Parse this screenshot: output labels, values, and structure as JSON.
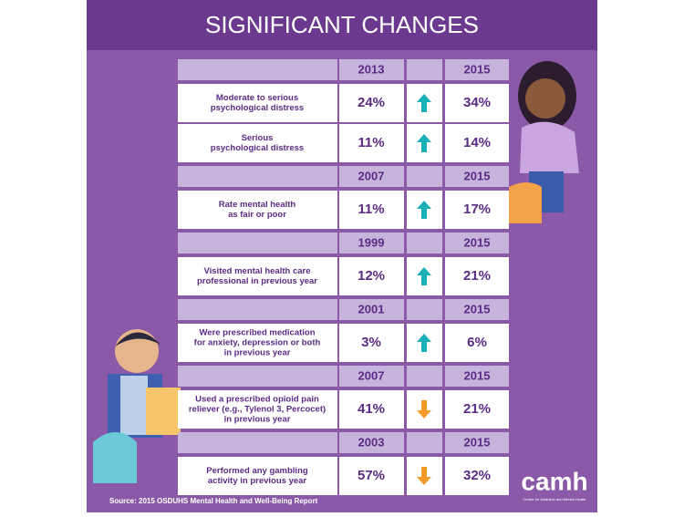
{
  "header": {
    "title": "SIGNIFICANT CHANGES"
  },
  "groups": [
    {
      "years": [
        "2013",
        "2015"
      ],
      "rows": [
        {
          "label": [
            "Moderate to serious",
            "psychological distress"
          ],
          "before": "24%",
          "after": "34%",
          "direction": "up"
        },
        {
          "label": [
            "Serious",
            "psychological distress"
          ],
          "before": "11%",
          "after": "14%",
          "direction": "up"
        }
      ]
    },
    {
      "years": [
        "2007",
        "2015"
      ],
      "rows": [
        {
          "label": [
            "Rate mental health",
            "as fair or poor"
          ],
          "before": "11%",
          "after": "17%",
          "direction": "up"
        }
      ]
    },
    {
      "years": [
        "1999",
        "2015"
      ],
      "rows": [
        {
          "label": [
            "Visited mental health care",
            "professional in previous year"
          ],
          "before": "12%",
          "after": "21%",
          "direction": "up"
        }
      ]
    },
    {
      "years": [
        "2001",
        "2015"
      ],
      "rows": [
        {
          "label": [
            "Were prescribed medication",
            "for anxiety, depression or both",
            "in previous year"
          ],
          "before": "3%",
          "after": "6%",
          "direction": "up"
        }
      ]
    },
    {
      "years": [
        "2007",
        "2015"
      ],
      "rows": [
        {
          "label": [
            "Used a prescribed opioid pain",
            "reliever (e.g., Tylenol 3, Percocet)",
            "in previous year"
          ],
          "before": "41%",
          "after": "21%",
          "direction": "down"
        }
      ]
    },
    {
      "years": [
        "2003",
        "2015"
      ],
      "rows": [
        {
          "label": [
            "Performed any gambling",
            "activity in previous year"
          ],
          "before": "57%",
          "after": "32%",
          "direction": "down"
        }
      ]
    }
  ],
  "footer": {
    "source": "Source: 2015 OSDUHS Mental Health and Well-Being Report",
    "logo": "camh",
    "logo_tagline": "Centre for Addiction and Mental Health"
  }
}
